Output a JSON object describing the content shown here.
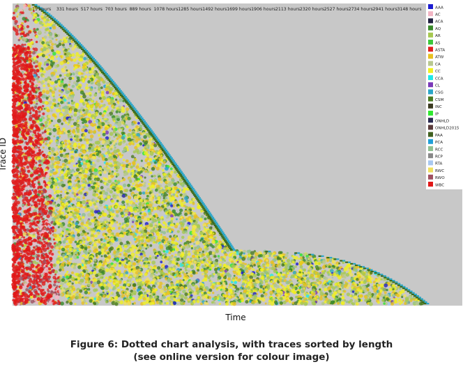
{
  "chart_data": {
    "type": "scatter",
    "title": "",
    "xlabel": "Time",
    "ylabel": "Trace ID",
    "x_tick_labels": [
      "15 hours",
      "331 hours",
      "517 hours",
      "703 hours",
      "889 hours",
      "1078 hours",
      "1285 hours",
      "1492 hours",
      "1699 hours",
      "1906 hours",
      "2113 hours",
      "2320 hours",
      "2527 hours",
      "2734 hours",
      "2941 hours",
      "3148 hours"
    ],
    "sort_order": "traces sorted by length",
    "grid": false,
    "legend_position": "right",
    "legend": [
      {
        "label": "AAA",
        "color": "#1c1cd0"
      },
      {
        "label": "AC",
        "color": "#f2b5c4"
      },
      {
        "label": "ACA",
        "color": "#202040"
      },
      {
        "label": "AQ",
        "color": "#3a8a2a"
      },
      {
        "label": "AR",
        "color": "#a6c850"
      },
      {
        "label": "AS",
        "color": "#3cc83c"
      },
      {
        "label": "ASTA",
        "color": "#e02020"
      },
      {
        "label": "ATW",
        "color": "#e8c020"
      },
      {
        "label": "CA",
        "color": "#b8c890"
      },
      {
        "label": "CC",
        "color": "#f0f020"
      },
      {
        "label": "CCA",
        "color": "#20e8e8"
      },
      {
        "label": "CL",
        "color": "#7a38b8"
      },
      {
        "label": "CSG",
        "color": "#2aa6c8"
      },
      {
        "label": "CSM",
        "color": "#4a7a20"
      },
      {
        "label": "INC",
        "color": "#3a3a20"
      },
      {
        "label": "IP",
        "color": "#30e830"
      },
      {
        "label": "ONHLD",
        "color": "#2a2a50"
      },
      {
        "label": "ONHLD2015",
        "color": "#5a3a3a"
      },
      {
        "label": "PAA",
        "color": "#406020"
      },
      {
        "label": "PCA",
        "color": "#20a0d8"
      },
      {
        "label": "RCC",
        "color": "#90c090"
      },
      {
        "label": "RCP",
        "color": "#888888"
      },
      {
        "label": "RTA",
        "color": "#a8c8f0"
      },
      {
        "label": "RWC",
        "color": "#f0e060"
      },
      {
        "label": "RWO",
        "color": "#a05060"
      },
      {
        "label": "WBC",
        "color": "#e01818"
      }
    ],
    "background_color": "#c8c8c8"
  },
  "caption": {
    "line1": "Figure 6: Dotted chart analysis, with traces sorted by length",
    "line2": "(see online version for colour image)"
  }
}
